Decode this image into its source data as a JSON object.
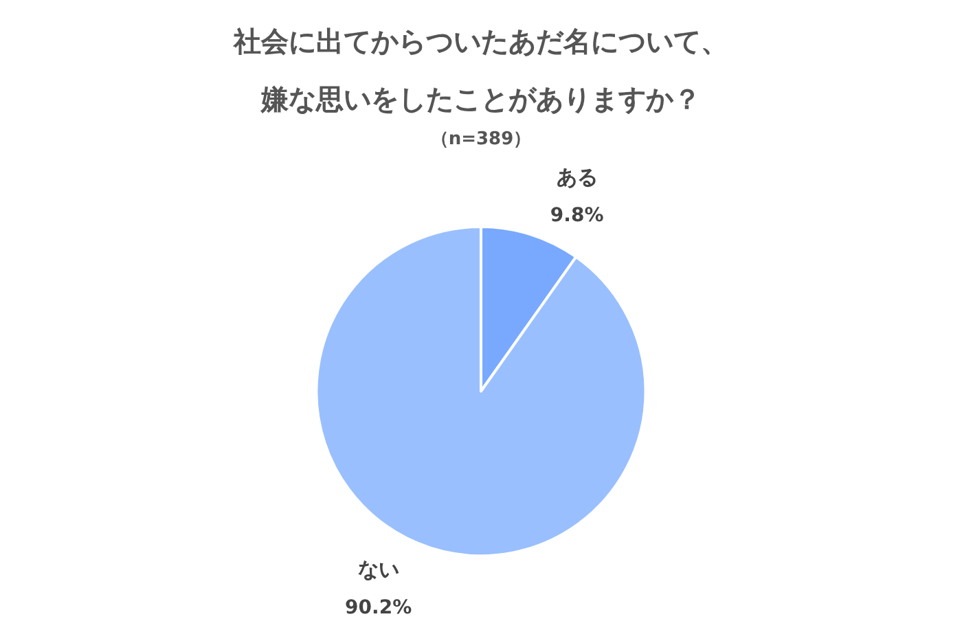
{
  "chart_data": {
    "type": "pie",
    "title": "社会に出てからついたあだ名について、嫌な思いをしたことがありますか？",
    "subtitle": "（n=389）",
    "categories": [
      "ある",
      "ない"
    ],
    "values": [
      9.8,
      90.2
    ],
    "colors": [
      "#78a9ff",
      "#99bfff"
    ],
    "value_labels": [
      "9.8%",
      "90.2%"
    ],
    "legend": false
  }
}
